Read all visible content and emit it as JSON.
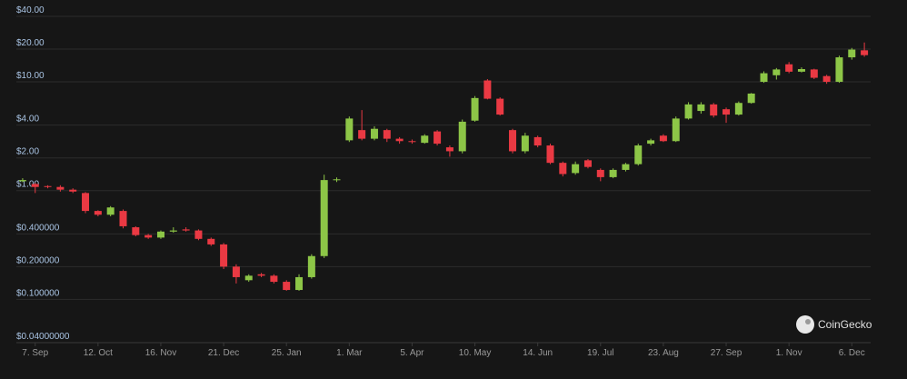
{
  "chart_data": {
    "type": "candlestick",
    "log_scale": true,
    "grid": true,
    "up_color": "#8dc647",
    "down_color": "#ea3943",
    "watermark": "CoinGecko",
    "ylim": [
      0.04,
      40
    ],
    "yticks": [
      {
        "value": 40,
        "label": "$40.00"
      },
      {
        "value": 20,
        "label": "$20.00"
      },
      {
        "value": 10,
        "label": "$10.00"
      },
      {
        "value": 4,
        "label": "$4.00"
      },
      {
        "value": 2,
        "label": "$2.00"
      },
      {
        "value": 1,
        "label": "$1.00"
      },
      {
        "value": 0.4,
        "label": "$0.400000"
      },
      {
        "value": 0.2,
        "label": "$0.200000"
      },
      {
        "value": 0.1,
        "label": "$0.100000"
      },
      {
        "value": 0.04,
        "label": "$0.04000000"
      }
    ],
    "categories": [
      null,
      "7. Sep",
      null,
      null,
      null,
      null,
      "12. Oct",
      null,
      null,
      null,
      null,
      "16. Nov",
      null,
      null,
      null,
      null,
      "21. Dec",
      null,
      null,
      null,
      null,
      "25. Jan",
      null,
      null,
      null,
      null,
      "1. Mar",
      null,
      null,
      null,
      null,
      "5. Apr",
      null,
      null,
      null,
      null,
      "10. May",
      null,
      null,
      null,
      null,
      "14. Jun",
      null,
      null,
      null,
      null,
      "19. Jul",
      null,
      null,
      null,
      null,
      "23. Aug",
      null,
      null,
      null,
      null,
      "27. Sep",
      null,
      null,
      null,
      null,
      "1. Nov",
      null,
      null,
      null,
      null,
      "6. Dec",
      null
    ],
    "open": [
      1.22,
      1.15,
      1.1,
      1.08,
      1.02,
      0.95,
      0.65,
      0.6,
      0.65,
      0.46,
      0.39,
      0.37,
      0.42,
      0.44,
      0.43,
      0.36,
      0.32,
      0.2,
      0.15,
      0.17,
      0.165,
      0.145,
      0.122,
      0.16,
      0.25,
      1.25,
      2.9,
      3.6,
      3.0,
      3.6,
      3.0,
      2.85,
      2.75,
      3.5,
      2.5,
      2.3,
      4.4,
      10.3,
      7.0,
      3.6,
      2.3,
      3.1,
      2.6,
      1.8,
      1.45,
      1.9,
      1.55,
      1.33,
      1.55,
      1.75,
      2.7,
      3.2,
      2.85,
      4.6,
      5.4,
      6.2,
      5.6,
      5.0,
      6.4,
      10,
      11.5,
      14.5,
      12.4,
      13,
      11.3,
      10,
      16.8,
      19.5
    ],
    "high": [
      1.3,
      1.17,
      1.12,
      1.12,
      1.05,
      0.97,
      0.66,
      0.72,
      0.67,
      0.47,
      0.4,
      0.43,
      0.46,
      0.46,
      0.44,
      0.37,
      0.33,
      0.21,
      0.17,
      0.175,
      0.17,
      0.15,
      0.17,
      0.26,
      1.4,
      1.32,
      4.8,
      5.5,
      3.9,
      3.7,
      3.1,
      2.95,
      3.3,
      3.6,
      2.6,
      4.5,
      7.4,
      10.6,
      7.2,
      3.7,
      3.4,
      3.2,
      2.7,
      1.85,
      1.85,
      1.95,
      1.6,
      1.6,
      1.8,
      2.7,
      3.0,
      3.3,
      4.8,
      6.5,
      6.5,
      6.4,
      5.8,
      6.6,
      7.9,
      12.5,
      13.4,
      15.2,
      13.6,
      13.2,
      11.6,
      17.4,
      20.5,
      23
    ],
    "low": [
      1.2,
      0.95,
      1.05,
      0.98,
      0.95,
      0.62,
      0.58,
      0.58,
      0.45,
      0.38,
      0.36,
      0.36,
      0.41,
      0.42,
      0.35,
      0.31,
      0.19,
      0.14,
      0.145,
      0.16,
      0.14,
      0.12,
      0.12,
      0.155,
      0.24,
      1.2,
      2.8,
      2.9,
      2.9,
      2.8,
      2.7,
      2.7,
      2.7,
      2.6,
      2.05,
      2.2,
      4.3,
      6.9,
      4.9,
      2.2,
      2.2,
      2.5,
      1.75,
      1.35,
      1.4,
      1.6,
      1.22,
      1.3,
      1.5,
      1.7,
      2.6,
      2.8,
      2.8,
      4.5,
      5.1,
      4.7,
      4.2,
      4.9,
      6.3,
      9.8,
      10.5,
      12,
      12.2,
      10.6,
      9.6,
      9.8,
      16,
      17
    ],
    "close": [
      1.25,
      1.08,
      1.08,
      1.02,
      0.98,
      0.65,
      0.6,
      0.7,
      0.47,
      0.39,
      0.37,
      0.42,
      0.43,
      0.43,
      0.36,
      0.32,
      0.2,
      0.16,
      0.165,
      0.165,
      0.145,
      0.122,
      0.16,
      0.25,
      1.25,
      1.27,
      4.6,
      3.0,
      3.7,
      3.0,
      2.85,
      2.8,
      3.2,
      2.7,
      2.3,
      4.3,
      7.1,
      7.0,
      5.0,
      2.3,
      3.2,
      2.6,
      1.8,
      1.42,
      1.75,
      1.65,
      1.33,
      1.55,
      1.75,
      2.6,
      2.9,
      2.85,
      4.6,
      6.2,
      6.2,
      4.9,
      5.0,
      6.4,
      7.8,
      12,
      13.0,
      12.4,
      13.1,
      10.9,
      10,
      16.8,
      19.8,
      17.6
    ]
  }
}
